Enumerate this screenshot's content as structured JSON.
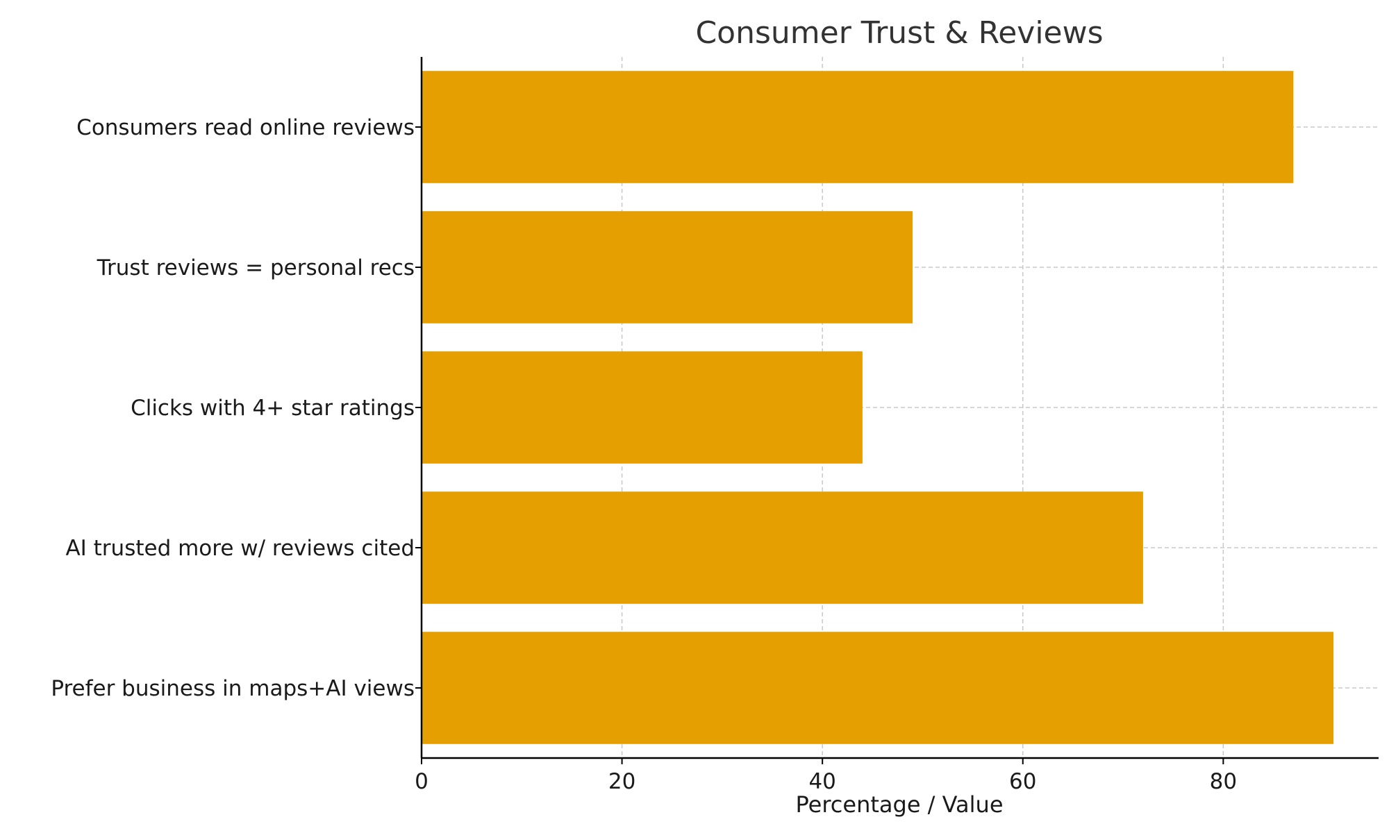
{
  "chart_data": {
    "type": "bar",
    "orientation": "horizontal",
    "title": "Consumer Trust & Reviews",
    "xlabel": "Percentage / Value",
    "ylabel": "",
    "categories": [
      "Consumers read online reviews",
      "Trust reviews = personal recs",
      "Clicks with 4+ star ratings",
      "AI trusted more w/ reviews cited",
      "Prefer business in maps+AI views"
    ],
    "values": [
      87,
      49,
      44,
      72,
      91
    ],
    "xlim": [
      0,
      95.5
    ],
    "xticks": [
      0,
      20,
      40,
      60,
      80
    ],
    "grid": true,
    "bar_color": "#E69F00"
  }
}
